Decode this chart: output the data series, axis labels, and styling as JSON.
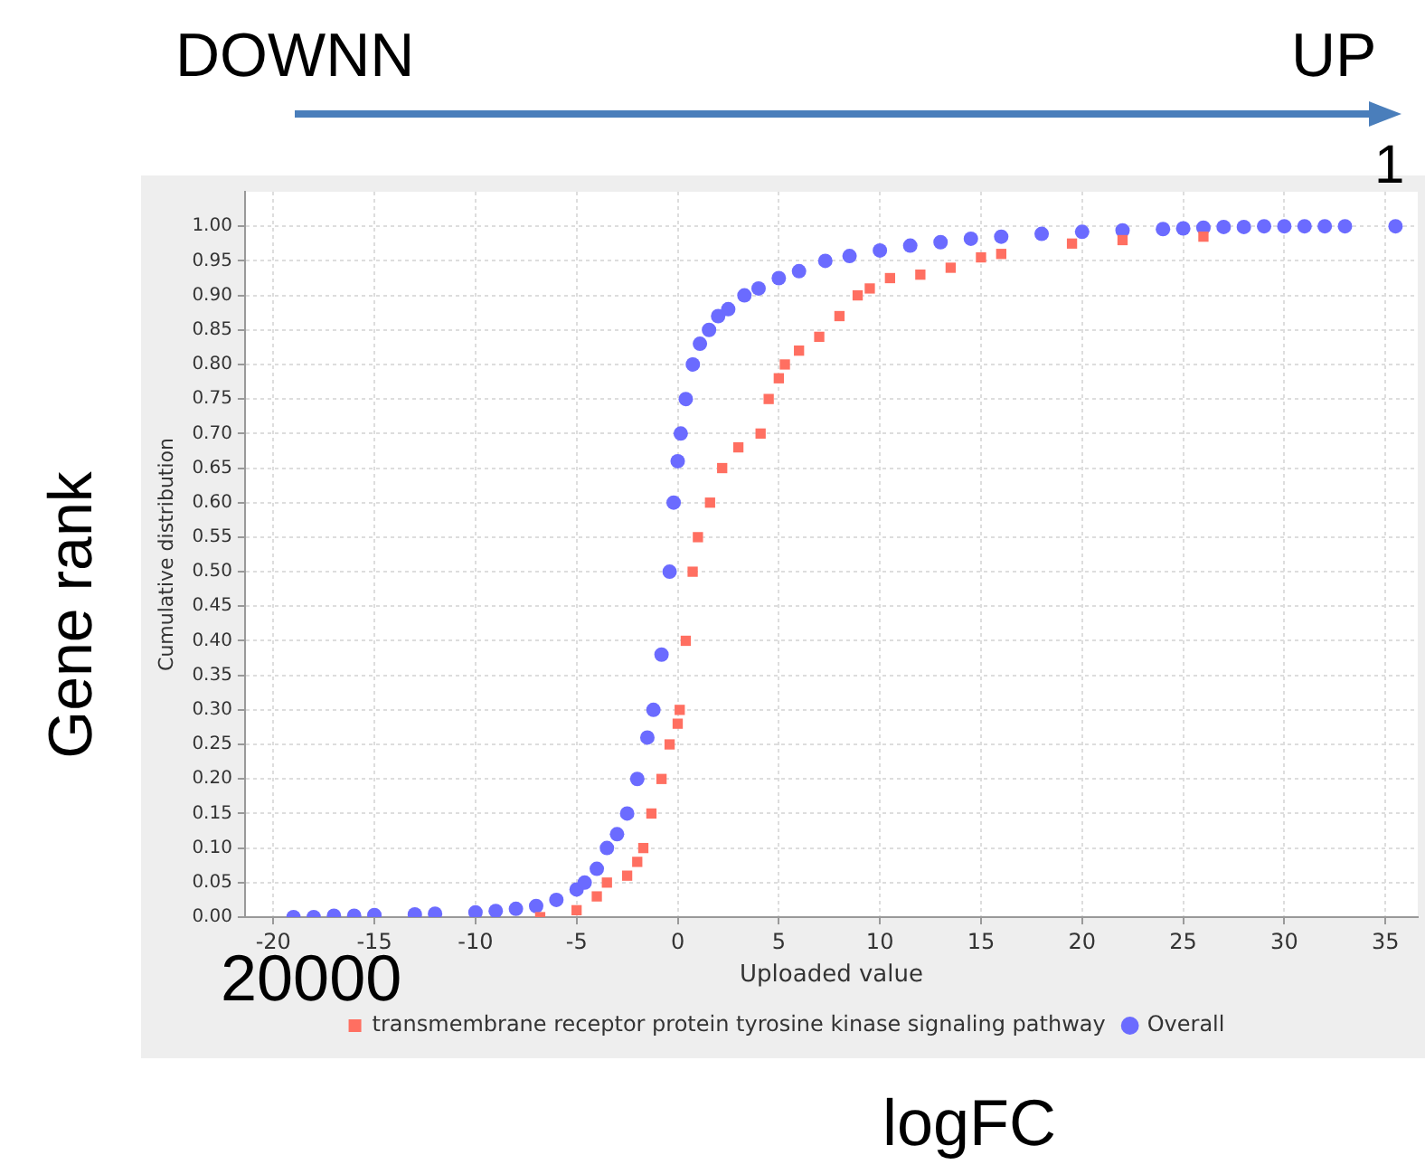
{
  "chart_data": {
    "type": "scatter",
    "xlabel": "Uploaded value",
    "ylabel": "Cumulative distribution",
    "annotations": [
      "DOWNN",
      "UP",
      "1",
      "20000",
      "Gene rank",
      "logFC"
    ],
    "xlim": [
      -21.4,
      36.6
    ],
    "ylim": [
      0,
      1.05
    ],
    "xticks": [
      -20,
      -15,
      -10,
      -5,
      0,
      5,
      10,
      15,
      20,
      25,
      30,
      35
    ],
    "yticks": [
      {
        "value": 0,
        "label": "0.00"
      },
      {
        "value": 0.05,
        "label": "0.05"
      },
      {
        "value": 0.1,
        "label": "0.10"
      },
      {
        "value": 0.15,
        "label": "0.15"
      },
      {
        "value": 0.2,
        "label": "0.20"
      },
      {
        "value": 0.25,
        "label": "0.25"
      },
      {
        "value": 0.3,
        "label": "0.30"
      },
      {
        "value": 0.35,
        "label": "0.35"
      },
      {
        "value": 0.4,
        "label": "0.40"
      },
      {
        "value": 0.45,
        "label": "0.45"
      },
      {
        "value": 0.5,
        "label": "0.50"
      },
      {
        "value": 0.55,
        "label": "0.55"
      },
      {
        "value": 0.6,
        "label": "0.60"
      },
      {
        "value": 0.65,
        "label": "0.65"
      },
      {
        "value": 0.7,
        "label": "0.70"
      },
      {
        "value": 0.75,
        "label": "0.75"
      },
      {
        "value": 0.8,
        "label": "0.80"
      },
      {
        "value": 0.85,
        "label": "0.85"
      },
      {
        "value": 0.9,
        "label": "0.90"
      },
      {
        "value": 0.95,
        "label": "0.95"
      },
      {
        "value": 1,
        "label": "1.00"
      }
    ],
    "grid": true,
    "legend": "bottom",
    "series": [
      {
        "name": "transmembrane receptor protein tyrosine kinase signaling pathway",
        "color": "#ff6f61",
        "marker": "square",
        "x": [
          -6.8,
          -5,
          -4,
          -3.5,
          -2.5,
          -2,
          -1.7,
          -1.3,
          -0.8,
          -0.4,
          0,
          0.1,
          0.4,
          0.74,
          1,
          1.6,
          2.2,
          3,
          4.1,
          4.5,
          5,
          5.3,
          6,
          7,
          8,
          8.9,
          9.5,
          10.5,
          12,
          13.5,
          15,
          16,
          19.5,
          22,
          26
        ],
        "values": [
          0,
          0.01,
          0.03,
          0.05,
          0.06,
          0.08,
          0.1,
          0.15,
          0.2,
          0.25,
          0.28,
          0.3,
          0.4,
          0.5,
          0.55,
          0.6,
          0.65,
          0.68,
          0.7,
          0.75,
          0.78,
          0.8,
          0.82,
          0.84,
          0.87,
          0.9,
          0.91,
          0.925,
          0.93,
          0.94,
          0.955,
          0.96,
          0.975,
          0.98,
          0.985
        ]
      },
      {
        "name": "Overall",
        "color": "#6b6bff",
        "marker": "circle",
        "x": [
          -19,
          -18,
          -17,
          -16,
          -15,
          -13,
          -12,
          -10,
          -9,
          -8,
          -7,
          -6,
          -5,
          -4.6,
          -4,
          -3.5,
          -3,
          -2.5,
          -2,
          -1.5,
          -1.2,
          -0.8,
          -0.4,
          -0.2,
          0,
          0.15,
          0.4,
          0.75,
          1.1,
          1.55,
          2,
          2.5,
          3.3,
          4,
          5,
          6,
          7.3,
          8.5,
          10,
          11.5,
          13,
          14.5,
          16,
          18,
          20,
          22,
          24,
          25,
          26,
          27,
          28,
          29,
          30,
          31,
          32,
          33,
          35.5
        ],
        "values": [
          0,
          0,
          0.002,
          0.002,
          0.003,
          0.004,
          0.005,
          0.007,
          0.009,
          0.012,
          0.016,
          0.025,
          0.04,
          0.05,
          0.07,
          0.1,
          0.12,
          0.15,
          0.2,
          0.26,
          0.3,
          0.38,
          0.5,
          0.6,
          0.66,
          0.7,
          0.75,
          0.8,
          0.83,
          0.85,
          0.87,
          0.88,
          0.9,
          0.91,
          0.925,
          0.935,
          0.95,
          0.957,
          0.965,
          0.972,
          0.977,
          0.982,
          0.985,
          0.989,
          0.992,
          0.994,
          0.996,
          0.997,
          0.998,
          0.999,
          0.999,
          1,
          1,
          1,
          1,
          1,
          1
        ]
      }
    ]
  }
}
